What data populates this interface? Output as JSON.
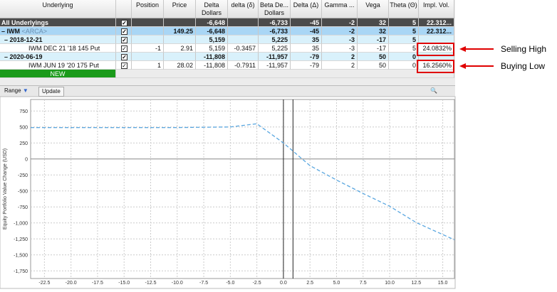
{
  "table": {
    "columns": [
      "Underlying",
      null,
      "Position",
      "Price",
      "Delta\nDollars",
      "delta (δ)",
      "Beta De...\nDollars",
      "Delta (Δ)",
      "Gamma ...",
      "Vega",
      "Theta (Θ)",
      "Impl. Vol."
    ],
    "rows": [
      {
        "label": "All Underlyings",
        "cells": [
          null,
          null,
          "-6,648",
          null,
          "-6,733",
          "-45",
          "-2",
          "32",
          "5",
          "22.312..."
        ]
      },
      {
        "label": "IWM",
        "tag": "<ARCA>",
        "cells": [
          null,
          "149.25",
          "-6,648",
          null,
          "-6,733",
          "-45",
          "-2",
          "32",
          "5",
          "22.312..."
        ]
      },
      {
        "label": "2018-12-21",
        "cells": [
          null,
          null,
          "5,159",
          null,
          "5,225",
          "35",
          "-3",
          "-17",
          "5",
          null
        ]
      },
      {
        "label": "IWM DEC 21 '18 145 Put",
        "cells": [
          "-1",
          "2.91",
          "5,159",
          "-0.3457",
          "5,225",
          "35",
          "-3",
          "-17",
          "5",
          "24.0832%"
        ]
      },
      {
        "label": "2020-06-19",
        "cells": [
          null,
          null,
          "-11,808",
          null,
          "-11,957",
          "-79",
          "2",
          "50",
          "0",
          null
        ]
      },
      {
        "label": "IWM JUN 19 '20 175 Put",
        "cells": [
          "1",
          "28.02",
          "-11,808",
          "-0.7911",
          "-11,957",
          "-79",
          "2",
          "50",
          "0",
          "16.2560%"
        ]
      },
      {
        "label": "NEW",
        "cells": [
          null,
          null,
          null,
          null,
          null,
          null,
          null,
          null,
          null,
          null
        ]
      }
    ]
  },
  "toolbar": {
    "range": "Range",
    "update": "Update",
    "zoom": "Zoom"
  },
  "annotations": [
    "Selling High",
    "Buying Low"
  ],
  "chart_data": {
    "type": "line",
    "y_label": "Equity Portfolio Value Change (USD)",
    "x": [
      -23.8,
      -20,
      -15,
      -10,
      -5,
      -2.5,
      0,
      2.5,
      5,
      7.5,
      10,
      12.5,
      16.1
    ],
    "series": [
      {
        "color": "#5aa7e0",
        "values": [
          490,
          490,
          490,
          490,
          500,
          550,
          250,
          -105,
          -330,
          -540,
          -740,
          -995,
          -1265
        ]
      }
    ],
    "vlines": [
      0,
      0.9
    ],
    "xlim": [
      -23.8,
      16.1
    ],
    "ylim": [
      -1870,
      930
    ],
    "xticks": [
      {
        "value": -22.5,
        "label": "-22.5"
      },
      {
        "value": -20,
        "label": "-20.0"
      },
      {
        "value": -17.5,
        "label": "-17.5"
      },
      {
        "value": -15,
        "label": "-15.0"
      },
      {
        "value": -12.5,
        "label": "-12.5"
      },
      {
        "value": -10,
        "label": "-10.0"
      },
      {
        "value": -7.5,
        "label": "-7.5"
      },
      {
        "value": -5,
        "label": "-5.0"
      },
      {
        "value": -2.5,
        "label": "-2.5"
      },
      {
        "value": 0,
        "label": "0.0"
      },
      2.5,
      {
        "value": 5,
        "label": "5.0"
      },
      7.5,
      {
        "value": 10,
        "label": "10.0"
      },
      12.5,
      {
        "value": 15,
        "label": "15.0"
      }
    ],
    "yticks": [
      {
        "value": -1750,
        "label": "-1,750"
      },
      {
        "value": -1500,
        "label": "-1,500"
      },
      {
        "value": -1250,
        "label": "-1,250"
      },
      {
        "value": -1000,
        "label": "-1,000"
      },
      -750,
      -500,
      -250,
      0,
      250,
      500,
      750
    ],
    "grid": true
  }
}
